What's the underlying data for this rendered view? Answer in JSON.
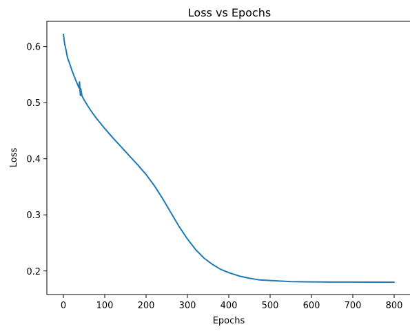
{
  "chart_data": {
    "type": "line",
    "title": "Loss vs Epochs",
    "xlabel": "Epochs",
    "ylabel": "Loss",
    "xlim": [
      -40,
      840
    ],
    "ylim": [
      0.158,
      0.645
    ],
    "xticks": [
      0,
      100,
      200,
      300,
      400,
      500,
      600,
      700,
      800
    ],
    "yticks": [
      0.2,
      0.3,
      0.4,
      0.5,
      0.6
    ],
    "xtick_labels": [
      "0",
      "100",
      "200",
      "300",
      "400",
      "500",
      "600",
      "700",
      "800"
    ],
    "ytick_labels": [
      "0.2",
      "0.3",
      "0.4",
      "0.5",
      "0.6"
    ],
    "grid": false,
    "legend": null,
    "series": [
      {
        "color": "#1f77b4",
        "x": [
          0,
          3,
          6,
          10,
          15,
          20,
          25,
          30,
          35,
          38,
          39,
          40,
          41,
          42,
          45,
          50,
          60,
          70,
          80,
          100,
          120,
          140,
          160,
          180,
          200,
          220,
          240,
          260,
          280,
          300,
          320,
          340,
          360,
          380,
          400,
          425,
          450,
          475,
          500,
          550,
          600,
          650,
          700,
          750,
          800
        ],
        "y": [
          0.622,
          0.605,
          0.595,
          0.58,
          0.57,
          0.559,
          0.549,
          0.54,
          0.531,
          0.526,
          0.537,
          0.525,
          0.513,
          0.525,
          0.512,
          0.505,
          0.493,
          0.482,
          0.472,
          0.454,
          0.437,
          0.421,
          0.405,
          0.389,
          0.372,
          0.352,
          0.329,
          0.304,
          0.279,
          0.257,
          0.238,
          0.223,
          0.212,
          0.203,
          0.197,
          0.191,
          0.187,
          0.184,
          0.183,
          0.181,
          0.1805,
          0.1803,
          0.1802,
          0.1801,
          0.18
        ]
      }
    ]
  }
}
